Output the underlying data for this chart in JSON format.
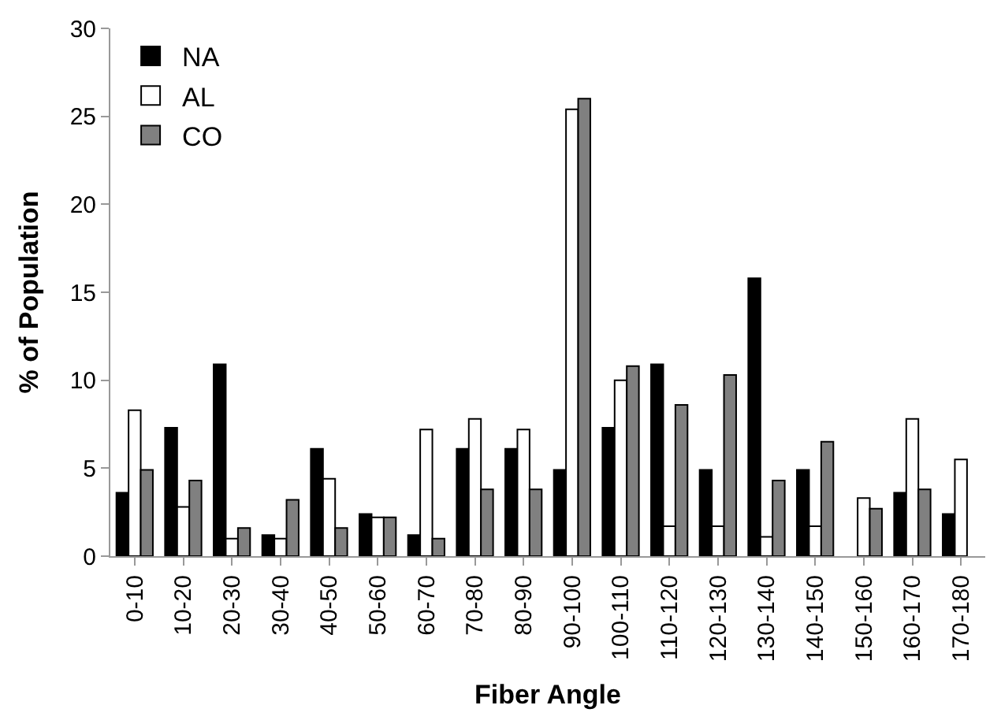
{
  "chart_data": {
    "type": "bar",
    "xlabel": "Fiber Angle",
    "ylabel": "% of Population",
    "categories": [
      "0-10",
      "10-20",
      "20-30",
      "30-40",
      "40-50",
      "50-60",
      "60-70",
      "70-80",
      "80-90",
      "90-100",
      "100-110",
      "110-120",
      "120-130",
      "130-140",
      "140-150",
      "150-160",
      "160-170",
      "170-180"
    ],
    "series": [
      {
        "name": "NA",
        "color": "#000000",
        "values": [
          3.6,
          7.3,
          10.9,
          1.2,
          6.1,
          2.4,
          1.2,
          6.1,
          6.1,
          4.9,
          7.3,
          10.9,
          4.9,
          15.8,
          4.9,
          null,
          3.6,
          2.4
        ]
      },
      {
        "name": "AL",
        "color": "#ffffff",
        "values": [
          8.3,
          2.8,
          1.0,
          1.0,
          4.4,
          2.2,
          7.2,
          7.8,
          7.2,
          25.4,
          10.0,
          1.7,
          1.7,
          1.1,
          1.7,
          3.3,
          7.8,
          5.5
        ]
      },
      {
        "name": "CO",
        "color": "#808080",
        "values": [
          4.9,
          4.3,
          1.6,
          3.2,
          1.6,
          2.2,
          1.0,
          3.8,
          3.8,
          26.0,
          10.8,
          8.6,
          10.3,
          4.3,
          6.5,
          2.7,
          3.8,
          null
        ]
      }
    ],
    "ylim": [
      0,
      30
    ],
    "yticks": [
      0,
      5,
      10,
      15,
      20,
      25,
      30
    ],
    "legend": "top left"
  }
}
